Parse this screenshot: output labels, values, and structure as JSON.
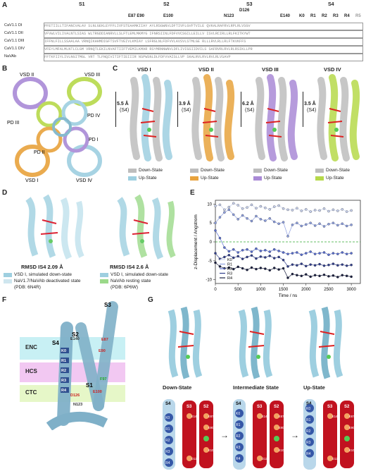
{
  "panels": {
    "A": "A",
    "B": "B",
    "C": "C",
    "D": "D",
    "E": "E",
    "F": "F",
    "G": "G"
  },
  "panelA": {
    "segments": [
      "S1",
      "S2",
      "S3",
      "S4"
    ],
    "residues_top": {
      "d126": "D126",
      "e87e90": "E87 E90",
      "e100": "E100",
      "n123": "N123",
      "e140": "E140"
    },
    "gating": [
      "K0",
      "R1",
      "R2",
      "R3",
      "R4",
      "R5"
    ],
    "rows": [
      {
        "label": "CaV1.1 DI",
        "seq": "PFETIILLTIFANCVALAV   SLNLGEKLEYFFLIVFSTEAAMKIIAY   AYLRSGWNVLDFTIVFLGVFTVILE   QVKALRAFRVLRPLRLVSGV"
      },
      {
        "label": "CaV1.1 DII",
        "seq": "VFVWLVILIVALNTLSIAS   WLTRGDDIANRVLLSLFTLEMLMKMYG   IFNRSIINLFDFVVCSGILLEILLV   ISVLRCIRLLRLFKITKYWT"
      },
      {
        "label": "CaV1.1 DIII",
        "seq": "IFFNLFILLSSAALAA   VRNQIKHHMDIGFTSVFTVEIVLKMIAY   LSFRGLNLFDFVVLAVSVLSTMLGE   RLLLRVLRLLRLFTKVKFFS"
      },
      {
        "label": "CaV1.1 DIV",
        "seq": "VFEYLMFALMLNTLCLGM   VRNQTLEKILNVAFTIIFTVEMILKMAR   RSYMRNNWNVLDFLIVIGSIIDVILS   SAFRVRLRVLRLRSIKLLPR"
      },
      {
        "label": "NaVAb",
        "seq": "FFTKFIIYLIVLNGITMGL   VRT   TLFNQIVITIFTIEIIIR   NSPWSNLDLFDFVVAISLLVP   SKALRVLRVLRVLRLVSAVP"
      }
    ]
  },
  "panelB": {
    "labels": [
      "VSD II",
      "VSD III",
      "PD IV",
      "PD III",
      "PD I",
      "PD II",
      "VSD I",
      "VSD IV"
    ]
  },
  "panelC": {
    "titles": [
      "VSD I",
      "VSD II",
      "VSD III",
      "VSD IV"
    ],
    "displacements": [
      "5.5 Å",
      "3.9 Å",
      "6.2 Å",
      "3.5 Å"
    ],
    "s4": "(S4)",
    "legend_down": "Down-State",
    "legend_up": "Up-State",
    "colors": {
      "down": "#bdbdbd",
      "up": [
        "#9ecfe0",
        "#e8a33d",
        "#a98ad6",
        "#b6d94a"
      ]
    }
  },
  "panelD": {
    "rmsd_left": "RMSD IS4 2.09 Å",
    "rmsd_right": "RMSD IS4 2.6 Å",
    "leg_left_1": "VSD I, simulated down-state",
    "leg_left_2": "NaV1.7/NaVAb deactivated state",
    "leg_left_3": "(PDB: 6N4R)",
    "leg_right_1": "VSD I, simulated down-state",
    "leg_right_2": "NaVAb resting state",
    "leg_right_3": "(PDB: 6P6W)"
  },
  "panelF": {
    "zones": [
      "ENC",
      "HCS",
      "CTC"
    ],
    "helices": [
      "S1",
      "S2",
      "S3",
      "S4"
    ],
    "residues": [
      "E140",
      "E87",
      "E90",
      "F97",
      "E100",
      "D126",
      "N123"
    ],
    "gating": [
      "K0",
      "R1",
      "R2",
      "R3",
      "R4"
    ]
  },
  "panelG": {
    "states": [
      "Down-State",
      "Intermediate State",
      "Up-State"
    ],
    "helix_labels": [
      "S4",
      "S3",
      "S2"
    ],
    "gating": [
      "K0",
      "R1",
      "R2",
      "R3",
      "R4"
    ],
    "residues": [
      "E140",
      "E87",
      "E90",
      "F",
      "E100",
      "D126"
    ]
  },
  "chart_data": {
    "type": "scatter",
    "xlabel": "Time / ns",
    "ylabel": "z-Displacement / Angstrom",
    "xlim": [
      0,
      3200
    ],
    "ylim": [
      -11,
      11
    ],
    "xticks": [
      "0",
      "500",
      "1000",
      "1500",
      "2000",
      "2500",
      "3000"
    ],
    "yticks": [
      "-10",
      "-5",
      "0",
      "5",
      "10"
    ],
    "legend_position": "bottom-left",
    "reference_line_y": 0,
    "series": [
      {
        "name": "K0",
        "color": "#c9d3f0",
        "x": [
          0,
          100,
          200,
          300,
          400,
          500,
          600,
          700,
          800,
          900,
          1000,
          1100,
          1200,
          1300,
          1400,
          1500,
          1600,
          1700,
          1800,
          1900,
          2000,
          2100,
          2200,
          2300,
          2400,
          2500,
          2600,
          2700,
          2800,
          2900,
          3000
        ],
        "y": [
          9.5,
          9.8,
          8.5,
          9.2,
          10.2,
          9.7,
          8.8,
          9.1,
          9.8,
          8.9,
          9.4,
          9.0,
          8.6,
          9.3,
          9.6,
          8.8,
          8.5,
          8.4,
          8.9,
          8.2,
          8.6,
          8.0,
          8.4,
          8.3,
          8.8,
          8.1,
          8.5,
          8.2,
          8.6,
          8.0,
          8.3
        ]
      },
      {
        "name": "R1",
        "color": "#8d9fe0",
        "x": [
          0,
          100,
          200,
          300,
          400,
          500,
          600,
          700,
          800,
          900,
          1000,
          1100,
          1200,
          1300,
          1400,
          1500,
          1600,
          1700,
          1800,
          1900,
          2000,
          2100,
          2200,
          2300,
          2400,
          2500,
          2600,
          2700,
          2800,
          2900,
          3000
        ],
        "y": [
          5.0,
          6.5,
          7.8,
          8.5,
          7.2,
          6.0,
          7.0,
          6.2,
          5.5,
          6.8,
          6.0,
          5.6,
          6.2,
          5.3,
          4.8,
          5.2,
          1.5,
          4.5,
          5.0,
          4.2,
          4.6,
          5.0,
          4.3,
          4.8,
          4.1,
          4.7,
          5.0,
          4.4,
          4.8,
          4.2,
          4.5
        ]
      },
      {
        "name": "R2",
        "color": "#5a6fd0",
        "x": [
          0,
          100,
          200,
          300,
          400,
          500,
          600,
          700,
          800,
          900,
          1000,
          1100,
          1200,
          1300,
          1400,
          1500,
          1600,
          1700,
          1800,
          1900,
          2000,
          2100,
          2200,
          2300,
          2400,
          2500,
          2600,
          2700,
          2800,
          2900,
          3000
        ],
        "y": [
          3.0,
          1.0,
          -1.5,
          -2.5,
          -2.0,
          -2.8,
          -2.2,
          -2.0,
          -2.6,
          -1.8,
          -2.4,
          -2.2,
          -2.6,
          -2.0,
          -2.4,
          -2.8,
          -3.2,
          -3.0,
          -2.8,
          -3.4,
          -3.0,
          -2.6,
          -3.2,
          -3.0,
          -2.8,
          -3.4,
          -3.0,
          -3.2,
          -2.8,
          -3.2,
          -3.0
        ]
      },
      {
        "name": "R3",
        "color": "#323f8c",
        "x": [
          0,
          100,
          200,
          300,
          400,
          500,
          600,
          700,
          800,
          900,
          1000,
          1100,
          1200,
          1300,
          1400,
          1500,
          1600,
          1700,
          1800,
          1900,
          2000,
          2100,
          2200,
          2300,
          2400,
          2500,
          2600,
          2700,
          2800,
          2900,
          3000
        ],
        "y": [
          -3.0,
          -4.5,
          -4.0,
          -3.5,
          -4.2,
          -3.8,
          -4.5,
          -4.0,
          -3.6,
          -4.4,
          -3.9,
          -4.1,
          -3.7,
          -4.3,
          -4.0,
          -4.8,
          -6.5,
          -6.0,
          -6.2,
          -5.8,
          -6.4,
          -6.0,
          -6.2,
          -5.9,
          -6.3,
          -6.1,
          -5.8,
          -6.2,
          -6.0,
          -6.3,
          -6.1
        ]
      },
      {
        "name": "R4",
        "color": "#1a1f40",
        "x": [
          0,
          100,
          200,
          300,
          400,
          500,
          600,
          700,
          800,
          900,
          1000,
          1100,
          1200,
          1300,
          1400,
          1500,
          1600,
          1700,
          1800,
          1900,
          2000,
          2100,
          2200,
          2300,
          2400,
          2500,
          2600,
          2700,
          2800,
          2900,
          3000
        ],
        "y": [
          -5.5,
          -6.5,
          -7.0,
          -6.8,
          -7.2,
          -6.6,
          -7.0,
          -7.4,
          -6.8,
          -7.2,
          -6.9,
          -7.1,
          -7.5,
          -6.9,
          -7.3,
          -7.0,
          -9.5,
          -8.5,
          -8.8,
          -9.0,
          -8.6,
          -9.2,
          -8.8,
          -9.0,
          -8.7,
          -9.1,
          -8.9,
          -9.3,
          -8.8,
          -9.0,
          -9.2
        ]
      }
    ]
  }
}
